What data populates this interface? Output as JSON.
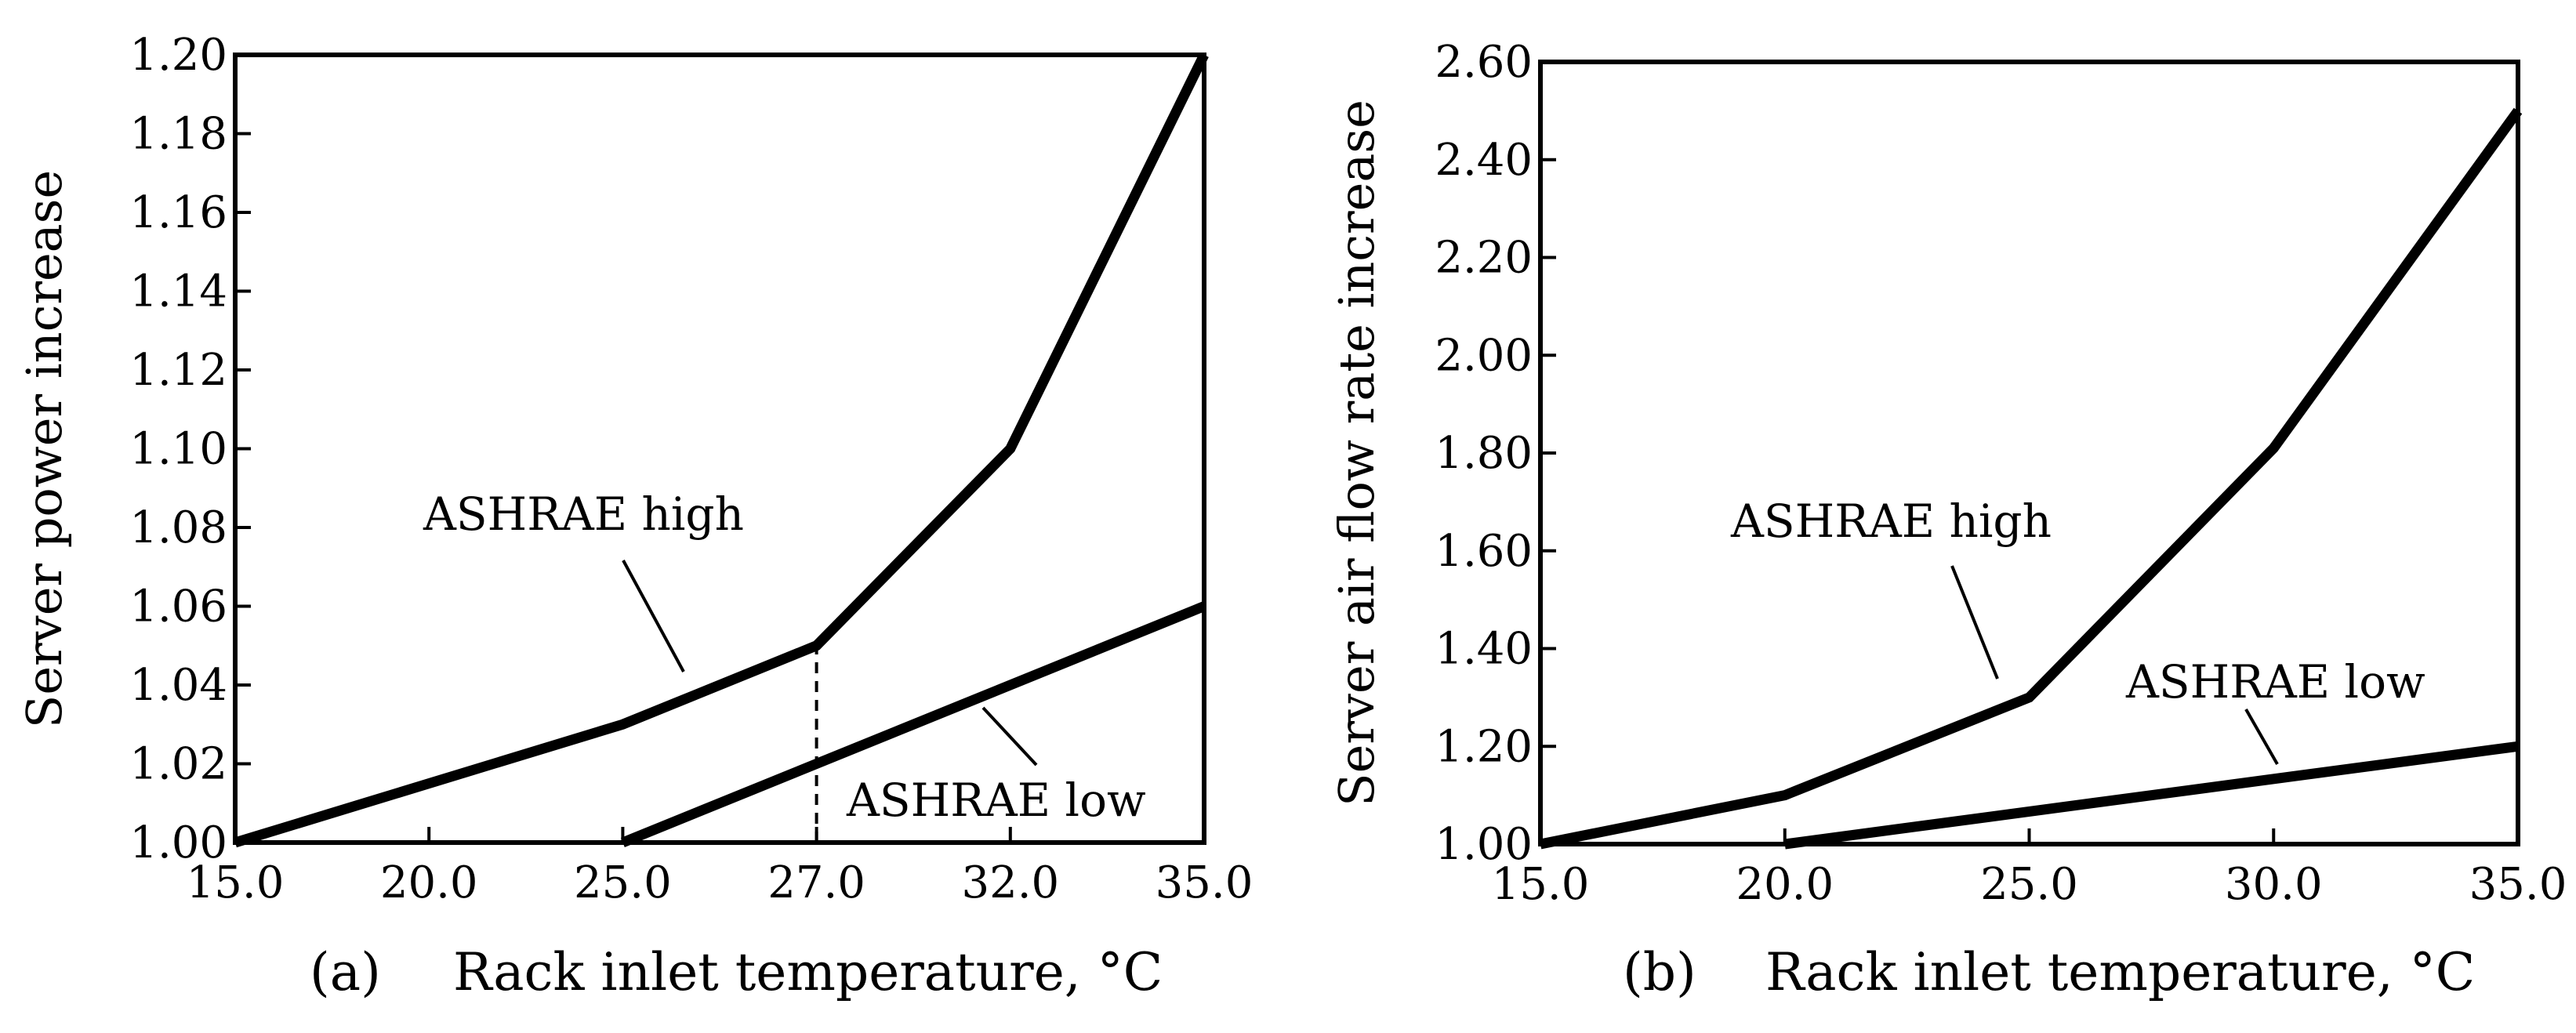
{
  "chart_data": [
    {
      "type": "line",
      "panel_label": "(a)",
      "xlabel": "Rack inlet temperature, °C",
      "ylabel": "Server power increase",
      "x_scale": "categorical",
      "x_ticks": [
        "15.0",
        "20.0",
        "25.0",
        "27.0",
        "32.0",
        "35.0"
      ],
      "y_ticks": [
        "1.00",
        "1.02",
        "1.04",
        "1.06",
        "1.08",
        "1.10",
        "1.12",
        "1.14",
        "1.16",
        "1.18",
        "1.20"
      ],
      "ylim": [
        1.0,
        1.2
      ],
      "series": [
        {
          "name": "ASHRAE high",
          "x": [
            "15.0",
            "25.0",
            "27.0",
            "32.0",
            "35.0"
          ],
          "values": [
            1.0,
            1.03,
            1.05,
            1.1,
            1.2
          ]
        },
        {
          "name": "ASHRAE low",
          "x": [
            "25.0",
            "35.0"
          ],
          "values": [
            1.0,
            1.06
          ]
        }
      ],
      "annotations": [
        {
          "type": "dashed-vertical",
          "x": "27.0",
          "from": 1.0,
          "to": 1.05
        }
      ]
    },
    {
      "type": "line",
      "panel_label": "(b)",
      "xlabel": "Rack inlet temperature, °C",
      "ylabel": "Server air flow rate increase",
      "x_scale": "linear",
      "xlim": [
        15.0,
        35.0
      ],
      "x_ticks": [
        "15.0",
        "20.0",
        "25.0",
        "30.0",
        "35.0"
      ],
      "y_ticks": [
        "1.00",
        "1.20",
        "1.40",
        "1.60",
        "1.80",
        "2.00",
        "2.20",
        "2.40",
        "2.60"
      ],
      "ylim": [
        1.0,
        2.6
      ],
      "series": [
        {
          "name": "ASHRAE high",
          "x": [
            15.0,
            20.0,
            25.0,
            30.0,
            35.0
          ],
          "values": [
            1.0,
            1.1,
            1.3,
            1.81,
            2.5
          ]
        },
        {
          "name": "ASHRAE low",
          "x": [
            20.0,
            35.0
          ],
          "values": [
            1.0,
            1.2
          ]
        }
      ]
    }
  ]
}
